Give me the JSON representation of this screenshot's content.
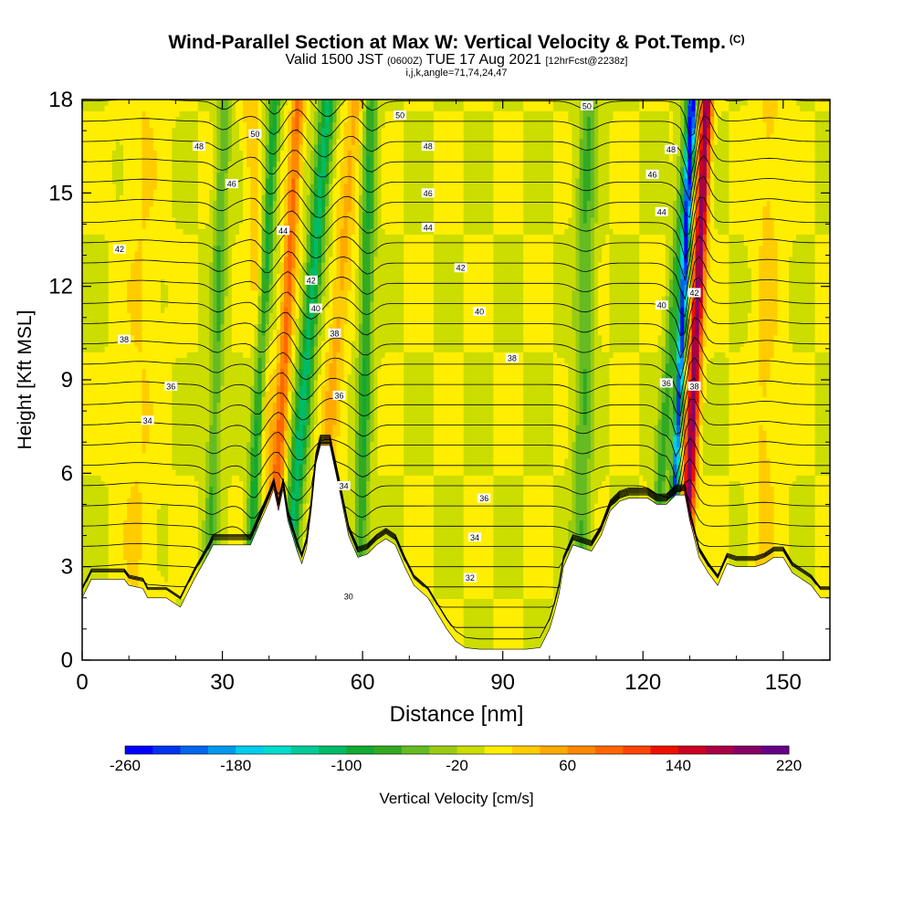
{
  "title": {
    "main": "Wind-Parallel Section at Max W: Vertical Velocity & Pot.Temp.",
    "copyright": "(C)",
    "valid_a": "Valid 1500 JST",
    "valid_b": "(0600Z)",
    "valid_c": "TUE 17 Aug 2021",
    "valid_d": "[12hrFcst@2238z]",
    "indices": "i,j,k,angle=71,74,24,47"
  },
  "chart_data": {
    "type": "heatmap",
    "xlabel": "Distance [nm]",
    "ylabel": "Height [Kft MSL]",
    "xlim": [
      0,
      160
    ],
    "ylim": [
      0,
      18
    ],
    "xticks": [
      0,
      30,
      60,
      90,
      120,
      150
    ],
    "yticks": [
      0,
      3,
      6,
      9,
      12,
      15,
      18
    ],
    "colorbar": {
      "label": "Vertical Velocity [cm/s]",
      "min": -260,
      "max": 220,
      "step": 20,
      "tick_labels": [
        "-260",
        "-180",
        "-100",
        "-20",
        "60",
        "140",
        "220"
      ],
      "colors": [
        "#0000ff",
        "#0033ee",
        "#0066ee",
        "#0099ee",
        "#00ccee",
        "#00ddcc",
        "#00cc99",
        "#00bb66",
        "#11aa33",
        "#33aa22",
        "#66bb22",
        "#99cc11",
        "#ccdd00",
        "#ffee00",
        "#ffcc00",
        "#ffaa00",
        "#ff8800",
        "#ff6600",
        "#ff4400",
        "#ee1100",
        "#cc0022",
        "#aa0044",
        "#880066",
        "#660088"
      ]
    },
    "terrain_kft": [
      [
        0,
        2.0
      ],
      [
        2,
        2.6
      ],
      [
        6,
        2.6
      ],
      [
        9,
        2.6
      ],
      [
        10,
        2.4
      ],
      [
        13,
        2.3
      ],
      [
        14,
        2.0
      ],
      [
        18,
        2.0
      ],
      [
        21,
        1.7
      ],
      [
        24,
        2.6
      ],
      [
        27,
        3.4
      ],
      [
        28,
        3.7
      ],
      [
        31,
        3.7
      ],
      [
        36,
        3.7
      ],
      [
        38,
        4.4
      ],
      [
        40,
        5.1
      ],
      [
        41,
        5.5
      ],
      [
        42,
        4.8
      ],
      [
        43,
        5.5
      ],
      [
        44,
        4.5
      ],
      [
        45,
        4.0
      ],
      [
        46,
        3.5
      ],
      [
        47,
        3.1
      ],
      [
        48,
        3.6
      ],
      [
        49,
        4.8
      ],
      [
        50,
        6.3
      ],
      [
        51,
        6.9
      ],
      [
        53,
        6.9
      ],
      [
        55,
        5.5
      ],
      [
        57,
        4.0
      ],
      [
        59,
        3.3
      ],
      [
        61,
        3.4
      ],
      [
        63,
        3.7
      ],
      [
        65,
        3.9
      ],
      [
        67,
        3.7
      ],
      [
        69,
        3.0
      ],
      [
        71,
        2.4
      ],
      [
        74,
        2.0
      ],
      [
        76,
        1.5
      ],
      [
        78,
        1.0
      ],
      [
        80,
        0.6
      ],
      [
        82,
        0.4
      ],
      [
        85,
        0.35
      ],
      [
        90,
        0.35
      ],
      [
        95,
        0.35
      ],
      [
        98,
        0.4
      ],
      [
        100,
        1.0
      ],
      [
        101,
        1.5
      ],
      [
        102,
        2.1
      ],
      [
        103,
        3.0
      ],
      [
        105,
        3.7
      ],
      [
        107,
        3.6
      ],
      [
        109,
        3.5
      ],
      [
        111,
        4.0
      ],
      [
        113,
        4.8
      ],
      [
        115,
        5.1
      ],
      [
        117,
        5.2
      ],
      [
        119,
        5.2
      ],
      [
        121,
        5.2
      ],
      [
        123,
        5.0
      ],
      [
        125,
        5.0
      ],
      [
        127,
        5.3
      ],
      [
        129,
        5.3
      ],
      [
        130,
        4.5
      ],
      [
        131,
        3.9
      ],
      [
        132,
        3.3
      ],
      [
        134,
        2.8
      ],
      [
        136,
        2.4
      ],
      [
        138,
        3.1
      ],
      [
        140,
        3.0
      ],
      [
        142,
        3.0
      ],
      [
        144,
        3.0
      ],
      [
        146,
        3.1
      ],
      [
        148,
        3.3
      ],
      [
        150,
        3.3
      ],
      [
        152,
        2.8
      ],
      [
        154,
        2.6
      ],
      [
        156,
        2.4
      ],
      [
        158,
        2.0
      ],
      [
        160,
        2.0
      ]
    ],
    "updrafts": [
      {
        "x0": 42,
        "slope": 0.35,
        "width": 1.4,
        "amp": 85
      },
      {
        "x0": 130,
        "slope": 0.3,
        "width": 1.3,
        "amp": 190
      },
      {
        "x0": 52,
        "slope": 0.55,
        "width": 2.0,
        "amp": 45
      },
      {
        "x0": 40,
        "slope": -0.35,
        "width": 1.8,
        "amp": 35
      },
      {
        "x0": 146,
        "slope": 0.1,
        "width": 3.0,
        "amp": 25
      },
      {
        "x0": 12,
        "slope": 0.1,
        "width": 4.0,
        "amp": 20
      }
    ],
    "downdrafts": [
      {
        "x0": 37,
        "slope": 0.35,
        "width": 1.3,
        "amp": -95
      },
      {
        "x0": 46,
        "slope": 0.55,
        "width": 1.8,
        "amp": -110
      },
      {
        "x0": 127,
        "slope": 0.3,
        "width": 0.8,
        "amp": -230
      },
      {
        "x0": 60,
        "slope": 0.15,
        "width": 1.5,
        "amp": -80
      },
      {
        "x0": 28,
        "slope": 0.2,
        "width": 1.5,
        "amp": -60
      },
      {
        "x0": 107,
        "slope": 0.1,
        "width": 2.0,
        "amp": -60
      },
      {
        "x0": 124,
        "slope": 0.5,
        "width": 1.5,
        "amp": -70
      }
    ],
    "theta_contours": {
      "units": "C",
      "labeled": [
        {
          "x": 57,
          "y": 2.05,
          "label": "30"
        },
        {
          "x": 83,
          "y": 2.65,
          "label": "32"
        },
        {
          "x": 84,
          "y": 3.95,
          "label": "34"
        },
        {
          "x": 56,
          "y": 5.6,
          "label": "34"
        },
        {
          "x": 14,
          "y": 7.7,
          "label": "34"
        },
        {
          "x": 86,
          "y": 5.2,
          "label": "36"
        },
        {
          "x": 55,
          "y": 8.5,
          "label": "36"
        },
        {
          "x": 19,
          "y": 8.8,
          "label": "36"
        },
        {
          "x": 125,
          "y": 8.9,
          "label": "36"
        },
        {
          "x": 92,
          "y": 9.7,
          "label": "38"
        },
        {
          "x": 54,
          "y": 10.5,
          "label": "38"
        },
        {
          "x": 9,
          "y": 10.3,
          "label": "38"
        },
        {
          "x": 131,
          "y": 8.8,
          "label": "38"
        },
        {
          "x": 85,
          "y": 11.2,
          "label": "40"
        },
        {
          "x": 50,
          "y": 11.3,
          "label": "40"
        },
        {
          "x": 124,
          "y": 11.4,
          "label": "40"
        },
        {
          "x": 81,
          "y": 12.6,
          "label": "42"
        },
        {
          "x": 49,
          "y": 12.2,
          "label": "42"
        },
        {
          "x": 8,
          "y": 13.2,
          "label": "42"
        },
        {
          "x": 131,
          "y": 11.8,
          "label": "42"
        },
        {
          "x": 74,
          "y": 13.9,
          "label": "44"
        },
        {
          "x": 43,
          "y": 13.8,
          "label": "44"
        },
        {
          "x": 124,
          "y": 14.4,
          "label": "44"
        },
        {
          "x": 74,
          "y": 15,
          "label": "46"
        },
        {
          "x": 32,
          "y": 15.3,
          "label": "46"
        },
        {
          "x": 122,
          "y": 15.6,
          "label": "46"
        },
        {
          "x": 74,
          "y": 16.5,
          "label": "48"
        },
        {
          "x": 25,
          "y": 16.5,
          "label": "48"
        },
        {
          "x": 126,
          "y": 16.4,
          "label": "48"
        },
        {
          "x": 68,
          "y": 17.5,
          "label": "50"
        },
        {
          "x": 37,
          "y": 16.9,
          "label": "50"
        },
        {
          "x": 108,
          "y": 17.8,
          "label": "50"
        }
      ]
    }
  }
}
